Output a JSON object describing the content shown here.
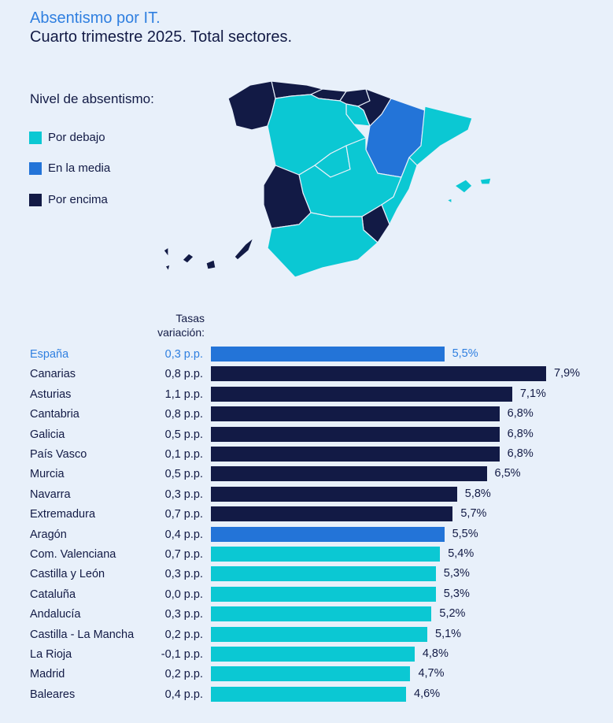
{
  "title": "Absentismo por IT.",
  "subtitle": "Cuarto trimestre 2025. Total sectores.",
  "legend": {
    "title": "Nivel de absentismo:",
    "items": [
      {
        "label": "Por debajo",
        "color": "#0bc8d3"
      },
      {
        "label": "En la media",
        "color": "#2374d8"
      },
      {
        "label": "Por encima",
        "color": "#121a45"
      }
    ]
  },
  "colors": {
    "below": "#0bc8d3",
    "average": "#2374d8",
    "above": "#121a45"
  },
  "chart_data": {
    "type": "bar",
    "orientation": "horizontal",
    "column_header": "Tasas variación:",
    "categories": [
      "España",
      "Canarias",
      "Asturias",
      "Cantabria",
      "Galicia",
      "País Vasco",
      "Murcia",
      "Navarra",
      "Extremadura",
      "Aragón",
      "Com. Valenciana",
      "Castilla y León",
      "Cataluña",
      "Andalucía",
      "Castilla - La Mancha",
      "La Rioja",
      "Madrid",
      "Baleares"
    ],
    "values": [
      5.5,
      7.9,
      7.1,
      6.8,
      6.8,
      6.8,
      6.5,
      5.8,
      5.7,
      5.5,
      5.4,
      5.3,
      5.3,
      5.2,
      5.1,
      4.8,
      4.7,
      4.6
    ],
    "value_labels": [
      "5,5%",
      "7,9%",
      "7,1%",
      "6,8%",
      "6,8%",
      "6,8%",
      "6,5%",
      "5,8%",
      "5,7%",
      "5,5%",
      "5,4%",
      "5,3%",
      "5,3%",
      "5,2%",
      "5,1%",
      "4,8%",
      "4,7%",
      "4,6%"
    ],
    "variation": [
      "0,3 p.p.",
      "0,8 p.p.",
      "1,1 p.p.",
      "0,8 p.p.",
      "0,5 p.p.",
      "0,1 p.p.",
      "0,5 p.p.",
      "0,3 p.p.",
      "0,7 p.p.",
      "0,4 p.p.",
      "0,7 p.p.",
      "0,3 p.p.",
      "0,0 p.p.",
      "0,3 p.p.",
      "0,2 p.p.",
      "-0,1 p.p.",
      "0,2 p.p.",
      "0,4 p.p."
    ],
    "level": [
      "average",
      "above",
      "above",
      "above",
      "above",
      "above",
      "above",
      "above",
      "above",
      "average",
      "below",
      "below",
      "below",
      "below",
      "below",
      "below",
      "below",
      "below"
    ],
    "xlim": [
      0,
      7.9
    ]
  }
}
